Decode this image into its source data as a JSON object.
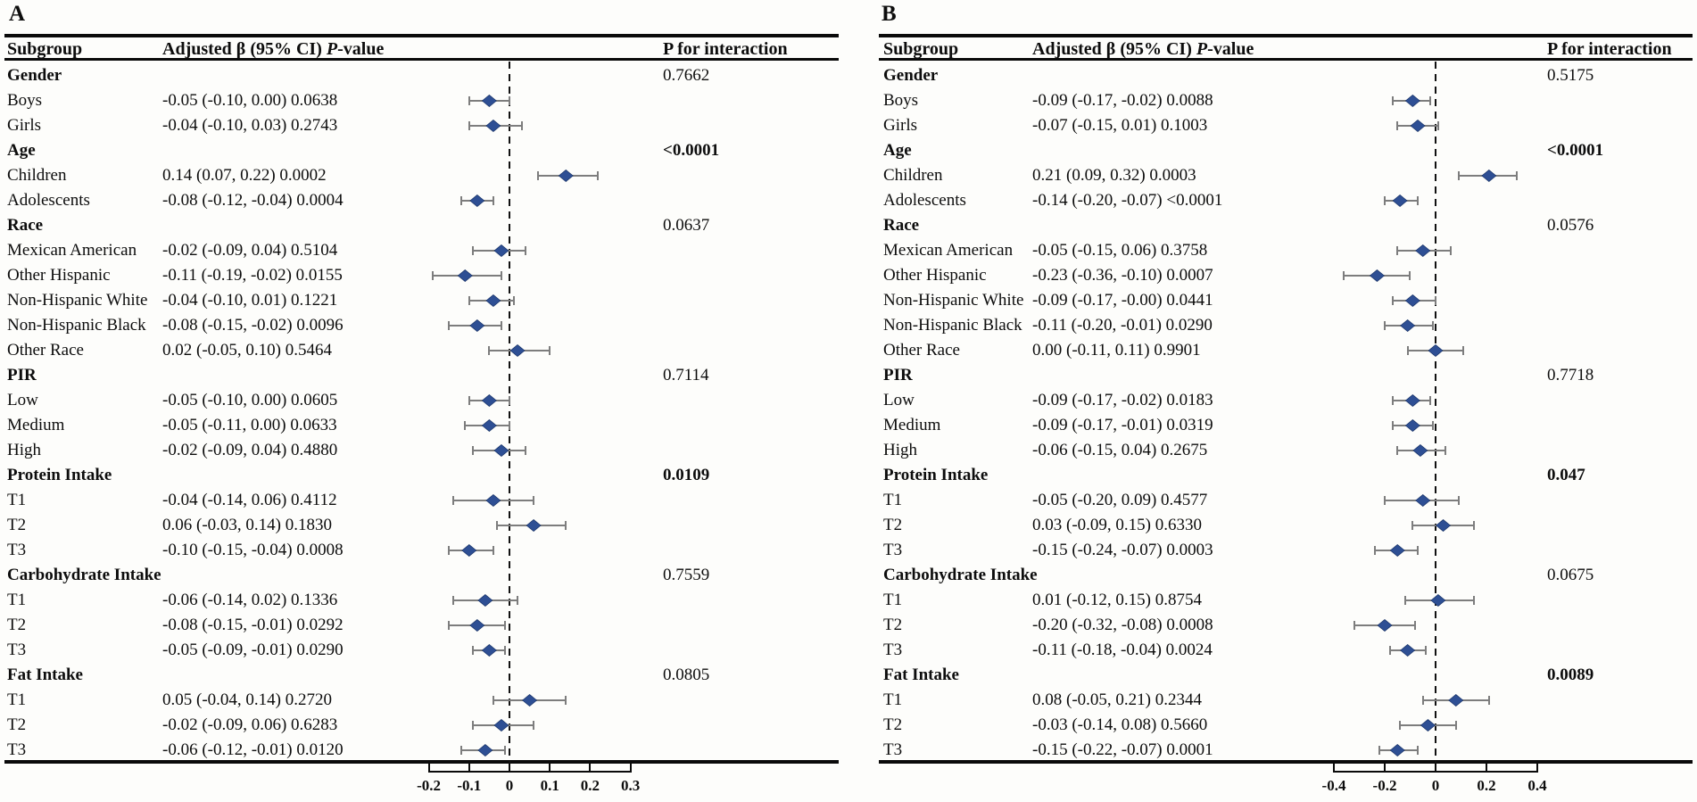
{
  "figure": {
    "subgroup_header": "Subgroup",
    "estimate_header": {
      "prefix": "Adjusted β (95% CI) ",
      "p": "P",
      "suffix": "-value"
    },
    "p_interaction_header": "P for interaction"
  },
  "colors": {
    "diamond": "#2e4f94",
    "diamond_border": "#1b3568",
    "error_bar": "#7d7d7d",
    "reference_line": "#111111",
    "rule": "#0a0a0a"
  },
  "chart_data": [
    {
      "type": "forest",
      "panel_label": "A",
      "x_tick_labels": [
        "-0.2",
        "-0.1",
        "0",
        "0.1",
        "0.2",
        "0.3"
      ],
      "x_tick_values": [
        -0.2,
        -0.1,
        0,
        0.1,
        0.2,
        0.3
      ],
      "xlim": [
        -0.2,
        0.3
      ],
      "reference_x": 0,
      "groups": [
        {
          "label": "Gender",
          "p_interaction": "0.7662",
          "p_interaction_bold": false,
          "rows": [
            {
              "label": "Boys",
              "display": "-0.05 (-0.10, 0.00) 0.0638",
              "beta": -0.05,
              "ci_low": -0.1,
              "ci_high": 0.0,
              "p": "0.0638"
            },
            {
              "label": "Girls",
              "display": "-0.04 (-0.10, 0.03) 0.2743",
              "beta": -0.04,
              "ci_low": -0.1,
              "ci_high": 0.03,
              "p": "0.2743"
            }
          ]
        },
        {
          "label": "Age",
          "p_interaction": "<0.0001",
          "p_interaction_bold": true,
          "rows": [
            {
              "label": "Children",
              "display": "0.14 (0.07, 0.22) 0.0002",
              "beta": 0.14,
              "ci_low": 0.07,
              "ci_high": 0.22,
              "p": "0.0002"
            },
            {
              "label": "Adolescents",
              "display": "-0.08 (-0.12, -0.04) 0.0004",
              "beta": -0.08,
              "ci_low": -0.12,
              "ci_high": -0.04,
              "p": "0.0004"
            }
          ]
        },
        {
          "label": "Race",
          "p_interaction": "0.0637",
          "p_interaction_bold": false,
          "rows": [
            {
              "label": "Mexican American",
              "display": "-0.02 (-0.09, 0.04) 0.5104",
              "beta": -0.02,
              "ci_low": -0.09,
              "ci_high": 0.04,
              "p": "0.5104"
            },
            {
              "label": "Other Hispanic",
              "display": "-0.11 (-0.19, -0.02) 0.0155",
              "beta": -0.11,
              "ci_low": -0.19,
              "ci_high": -0.02,
              "p": "0.0155"
            },
            {
              "label": "Non-Hispanic White",
              "display": "-0.04 (-0.10, 0.01) 0.1221",
              "beta": -0.04,
              "ci_low": -0.1,
              "ci_high": 0.01,
              "p": "0.1221"
            },
            {
              "label": "Non-Hispanic Black",
              "display": "-0.08 (-0.15, -0.02) 0.0096",
              "beta": -0.08,
              "ci_low": -0.15,
              "ci_high": -0.02,
              "p": "0.0096"
            },
            {
              "label": "Other Race",
              "display": "0.02 (-0.05, 0.10) 0.5464",
              "beta": 0.02,
              "ci_low": -0.05,
              "ci_high": 0.1,
              "p": "0.5464"
            }
          ]
        },
        {
          "label": "PIR",
          "p_interaction": "0.7114",
          "p_interaction_bold": false,
          "rows": [
            {
              "label": "Low",
              "display": "-0.05 (-0.10, 0.00) 0.0605",
              "beta": -0.05,
              "ci_low": -0.1,
              "ci_high": 0.0,
              "p": "0.0605"
            },
            {
              "label": "Medium",
              "display": "-0.05 (-0.11, 0.00) 0.0633",
              "beta": -0.05,
              "ci_low": -0.11,
              "ci_high": 0.0,
              "p": "0.0633"
            },
            {
              "label": "High",
              "display": "-0.02 (-0.09, 0.04) 0.4880",
              "beta": -0.02,
              "ci_low": -0.09,
              "ci_high": 0.04,
              "p": "0.4880"
            }
          ]
        },
        {
          "label": "Protein Intake",
          "p_interaction": "0.0109",
          "p_interaction_bold": true,
          "rows": [
            {
              "label": "T1",
              "display": "-0.04 (-0.14, 0.06) 0.4112",
              "beta": -0.04,
              "ci_low": -0.14,
              "ci_high": 0.06,
              "p": "0.4112"
            },
            {
              "label": "T2",
              "display": "0.06 (-0.03, 0.14) 0.1830",
              "beta": 0.06,
              "ci_low": -0.03,
              "ci_high": 0.14,
              "p": "0.1830"
            },
            {
              "label": "T3",
              "display": "-0.10 (-0.15, -0.04) 0.0008",
              "beta": -0.1,
              "ci_low": -0.15,
              "ci_high": -0.04,
              "p": "0.0008"
            }
          ]
        },
        {
          "label": "Carbohydrate Intake",
          "p_interaction": "0.7559",
          "p_interaction_bold": false,
          "rows": [
            {
              "label": "T1",
              "display": "-0.06 (-0.14, 0.02) 0.1336",
              "beta": -0.06,
              "ci_low": -0.14,
              "ci_high": 0.02,
              "p": "0.1336"
            },
            {
              "label": "T2",
              "display": "-0.08 (-0.15, -0.01) 0.0292",
              "beta": -0.08,
              "ci_low": -0.15,
              "ci_high": -0.01,
              "p": "0.0292"
            },
            {
              "label": "T3",
              "display": "-0.05 (-0.09, -0.01) 0.0290",
              "beta": -0.05,
              "ci_low": -0.09,
              "ci_high": -0.01,
              "p": "0.0290"
            }
          ]
        },
        {
          "label": "Fat Intake",
          "p_interaction": "0.0805",
          "p_interaction_bold": false,
          "rows": [
            {
              "label": "T1",
              "display": "0.05 (-0.04, 0.14) 0.2720",
              "beta": 0.05,
              "ci_low": -0.04,
              "ci_high": 0.14,
              "p": "0.2720"
            },
            {
              "label": "T2",
              "display": "-0.02 (-0.09, 0.06) 0.6283",
              "beta": -0.02,
              "ci_low": -0.09,
              "ci_high": 0.06,
              "p": "0.6283"
            },
            {
              "label": "T3",
              "display": "-0.06 (-0.12, -0.01) 0.0120",
              "beta": -0.06,
              "ci_low": -0.12,
              "ci_high": -0.01,
              "p": "0.0120"
            }
          ]
        }
      ]
    },
    {
      "type": "forest",
      "panel_label": "B",
      "x_tick_labels": [
        "-0.4",
        "-0.2",
        "0",
        "0.2",
        "0.4"
      ],
      "x_tick_values": [
        -0.4,
        -0.2,
        0,
        0.2,
        0.4
      ],
      "xlim": [
        -0.4,
        0.4
      ],
      "reference_x": 0,
      "groups": [
        {
          "label": "Gender",
          "p_interaction": "0.5175",
          "p_interaction_bold": false,
          "rows": [
            {
              "label": "Boys",
              "display": "-0.09 (-0.17, -0.02) 0.0088",
              "beta": -0.09,
              "ci_low": -0.17,
              "ci_high": -0.02,
              "p": "0.0088"
            },
            {
              "label": "Girls",
              "display": "-0.07 (-0.15, 0.01) 0.1003",
              "beta": -0.07,
              "ci_low": -0.15,
              "ci_high": 0.01,
              "p": "0.1003"
            }
          ]
        },
        {
          "label": "Age",
          "p_interaction": "<0.0001",
          "p_interaction_bold": true,
          "rows": [
            {
              "label": "Children",
              "display": "0.21 (0.09, 0.32) 0.0003",
              "beta": 0.21,
              "ci_low": 0.09,
              "ci_high": 0.32,
              "p": "0.0003"
            },
            {
              "label": "Adolescents",
              "display": "-0.14 (-0.20, -0.07) <0.0001",
              "beta": -0.14,
              "ci_low": -0.2,
              "ci_high": -0.07,
              "p": "<0.0001"
            }
          ]
        },
        {
          "label": "Race",
          "p_interaction": "0.0576",
          "p_interaction_bold": false,
          "rows": [
            {
              "label": "Mexican American",
              "display": "-0.05 (-0.15, 0.06) 0.3758",
              "beta": -0.05,
              "ci_low": -0.15,
              "ci_high": 0.06,
              "p": "0.3758"
            },
            {
              "label": "Other Hispanic",
              "display": "-0.23 (-0.36, -0.10) 0.0007",
              "beta": -0.23,
              "ci_low": -0.36,
              "ci_high": -0.1,
              "p": "0.0007"
            },
            {
              "label": "Non-Hispanic White",
              "display": "-0.09 (-0.17, -0.00) 0.0441",
              "beta": -0.09,
              "ci_low": -0.17,
              "ci_high": -0.0,
              "p": "0.0441"
            },
            {
              "label": "Non-Hispanic Black",
              "display": "-0.11 (-0.20, -0.01) 0.0290",
              "beta": -0.11,
              "ci_low": -0.2,
              "ci_high": -0.01,
              "p": "0.0290"
            },
            {
              "label": "Other Race",
              "display": "0.00 (-0.11, 0.11) 0.9901",
              "beta": 0.0,
              "ci_low": -0.11,
              "ci_high": 0.11,
              "p": "0.9901"
            }
          ]
        },
        {
          "label": "PIR",
          "p_interaction": "0.7718",
          "p_interaction_bold": false,
          "rows": [
            {
              "label": "Low",
              "display": "-0.09 (-0.17, -0.02) 0.0183",
              "beta": -0.09,
              "ci_low": -0.17,
              "ci_high": -0.02,
              "p": "0.0183"
            },
            {
              "label": "Medium",
              "display": "-0.09 (-0.17, -0.01) 0.0319",
              "beta": -0.09,
              "ci_low": -0.17,
              "ci_high": -0.01,
              "p": "0.0319"
            },
            {
              "label": "High",
              "display": "-0.06 (-0.15, 0.04) 0.2675",
              "beta": -0.06,
              "ci_low": -0.15,
              "ci_high": 0.04,
              "p": "0.2675"
            }
          ]
        },
        {
          "label": "Protein Intake",
          "p_interaction": "0.047",
          "p_interaction_bold": true,
          "rows": [
            {
              "label": "T1",
              "display": "-0.05 (-0.20, 0.09) 0.4577",
              "beta": -0.05,
              "ci_low": -0.2,
              "ci_high": 0.09,
              "p": "0.4577"
            },
            {
              "label": "T2",
              "display": "0.03 (-0.09, 0.15) 0.6330",
              "beta": 0.03,
              "ci_low": -0.09,
              "ci_high": 0.15,
              "p": "0.6330"
            },
            {
              "label": "T3",
              "display": "-0.15 (-0.24, -0.07) 0.0003",
              "beta": -0.15,
              "ci_low": -0.24,
              "ci_high": -0.07,
              "p": "0.0003"
            }
          ]
        },
        {
          "label": "Carbohydrate Intake",
          "p_interaction": "0.0675",
          "p_interaction_bold": false,
          "rows": [
            {
              "label": "T1",
              "display": "0.01 (-0.12, 0.15) 0.8754",
              "beta": 0.01,
              "ci_low": -0.12,
              "ci_high": 0.15,
              "p": "0.8754"
            },
            {
              "label": "T2",
              "display": "-0.20 (-0.32, -0.08) 0.0008",
              "beta": -0.2,
              "ci_low": -0.32,
              "ci_high": -0.08,
              "p": "0.0008"
            },
            {
              "label": "T3",
              "display": "-0.11 (-0.18, -0.04) 0.0024",
              "beta": -0.11,
              "ci_low": -0.18,
              "ci_high": -0.04,
              "p": "0.0024"
            }
          ]
        },
        {
          "label": "Fat Intake",
          "p_interaction": "0.0089",
          "p_interaction_bold": true,
          "rows": [
            {
              "label": "T1",
              "display": "0.08 (-0.05, 0.21) 0.2344",
              "beta": 0.08,
              "ci_low": -0.05,
              "ci_high": 0.21,
              "p": "0.2344"
            },
            {
              "label": "T2",
              "display": "-0.03 (-0.14, 0.08) 0.5660",
              "beta": -0.03,
              "ci_low": -0.14,
              "ci_high": 0.08,
              "p": "0.5660"
            },
            {
              "label": "T3",
              "display": "-0.15 (-0.22, -0.07) 0.0001",
              "beta": -0.15,
              "ci_low": -0.22,
              "ci_high": -0.07,
              "p": "0.0001"
            }
          ]
        }
      ]
    }
  ]
}
